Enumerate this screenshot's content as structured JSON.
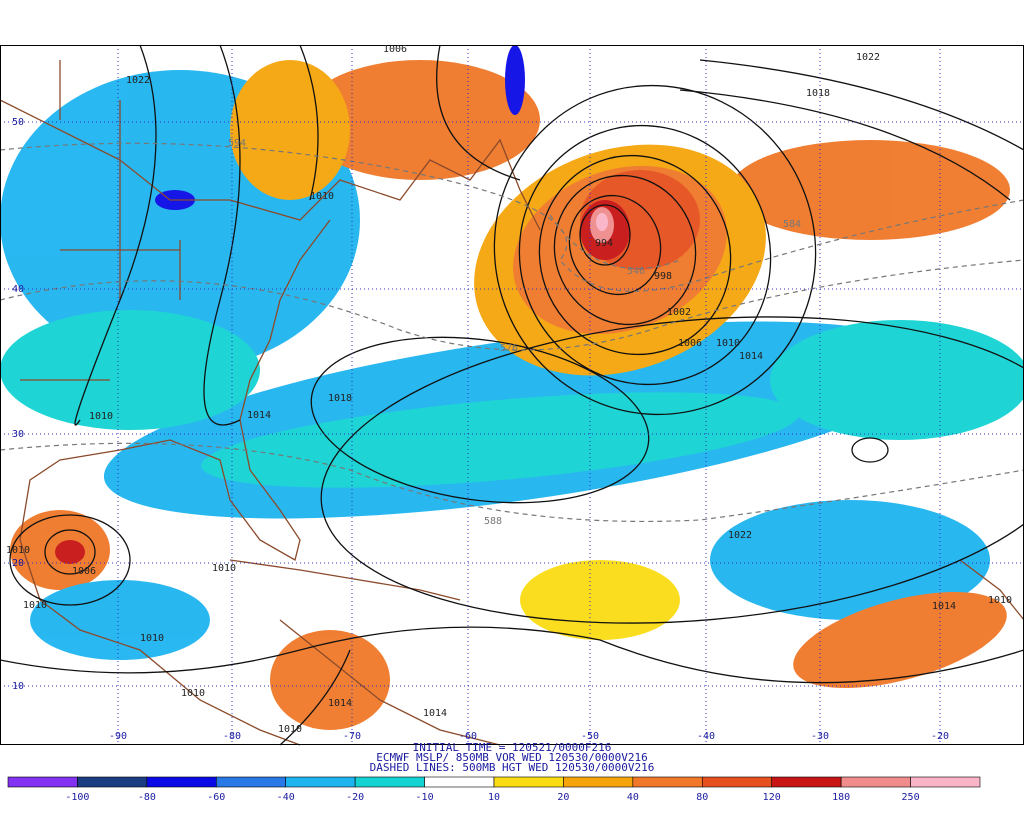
{
  "map": {
    "lat_labels": [
      "50",
      "40",
      "30",
      "20",
      "10"
    ],
    "lon_labels": [
      "-90",
      "-80",
      "-70",
      "-60",
      "-50",
      "-40",
      "-30",
      "-20"
    ],
    "isobar_labels": [
      "1006",
      "1022",
      "1022",
      "1018",
      "1010",
      "1018",
      "1014",
      "1010",
      "1010",
      "1006",
      "1010",
      "1010",
      "1010",
      "1010",
      "998",
      "994",
      "1002",
      "1006",
      "1010",
      "1014",
      "1022",
      "1014",
      "1010",
      "1014",
      "1014",
      "1010"
    ],
    "height_labels": [
      "594",
      "576",
      "588",
      "546",
      "584"
    ]
  },
  "caption": [
    "INITIAL TIME = 120521/0000F216",
    "ECMWF MSLP/ 850MB VOR WED 120530/0000V216",
    "DASHED LINES: 500MB HGT WED 120530/0000V216"
  ],
  "colorbar": {
    "labels": [
      "-100",
      "-80",
      "-60",
      "-40",
      "-20",
      "-10",
      "10",
      "20",
      "40",
      "80",
      "120",
      "180",
      "250"
    ],
    "colors": [
      "#8232f0",
      "#1a3c82",
      "#0a0ae6",
      "#2878e6",
      "#1eb4f0",
      "#14d2d2",
      "#ffffff",
      "#fadc14",
      "#f5a50a",
      "#f07828",
      "#e6501e",
      "#c81414",
      "#f08c8c",
      "#fab4c8"
    ]
  }
}
